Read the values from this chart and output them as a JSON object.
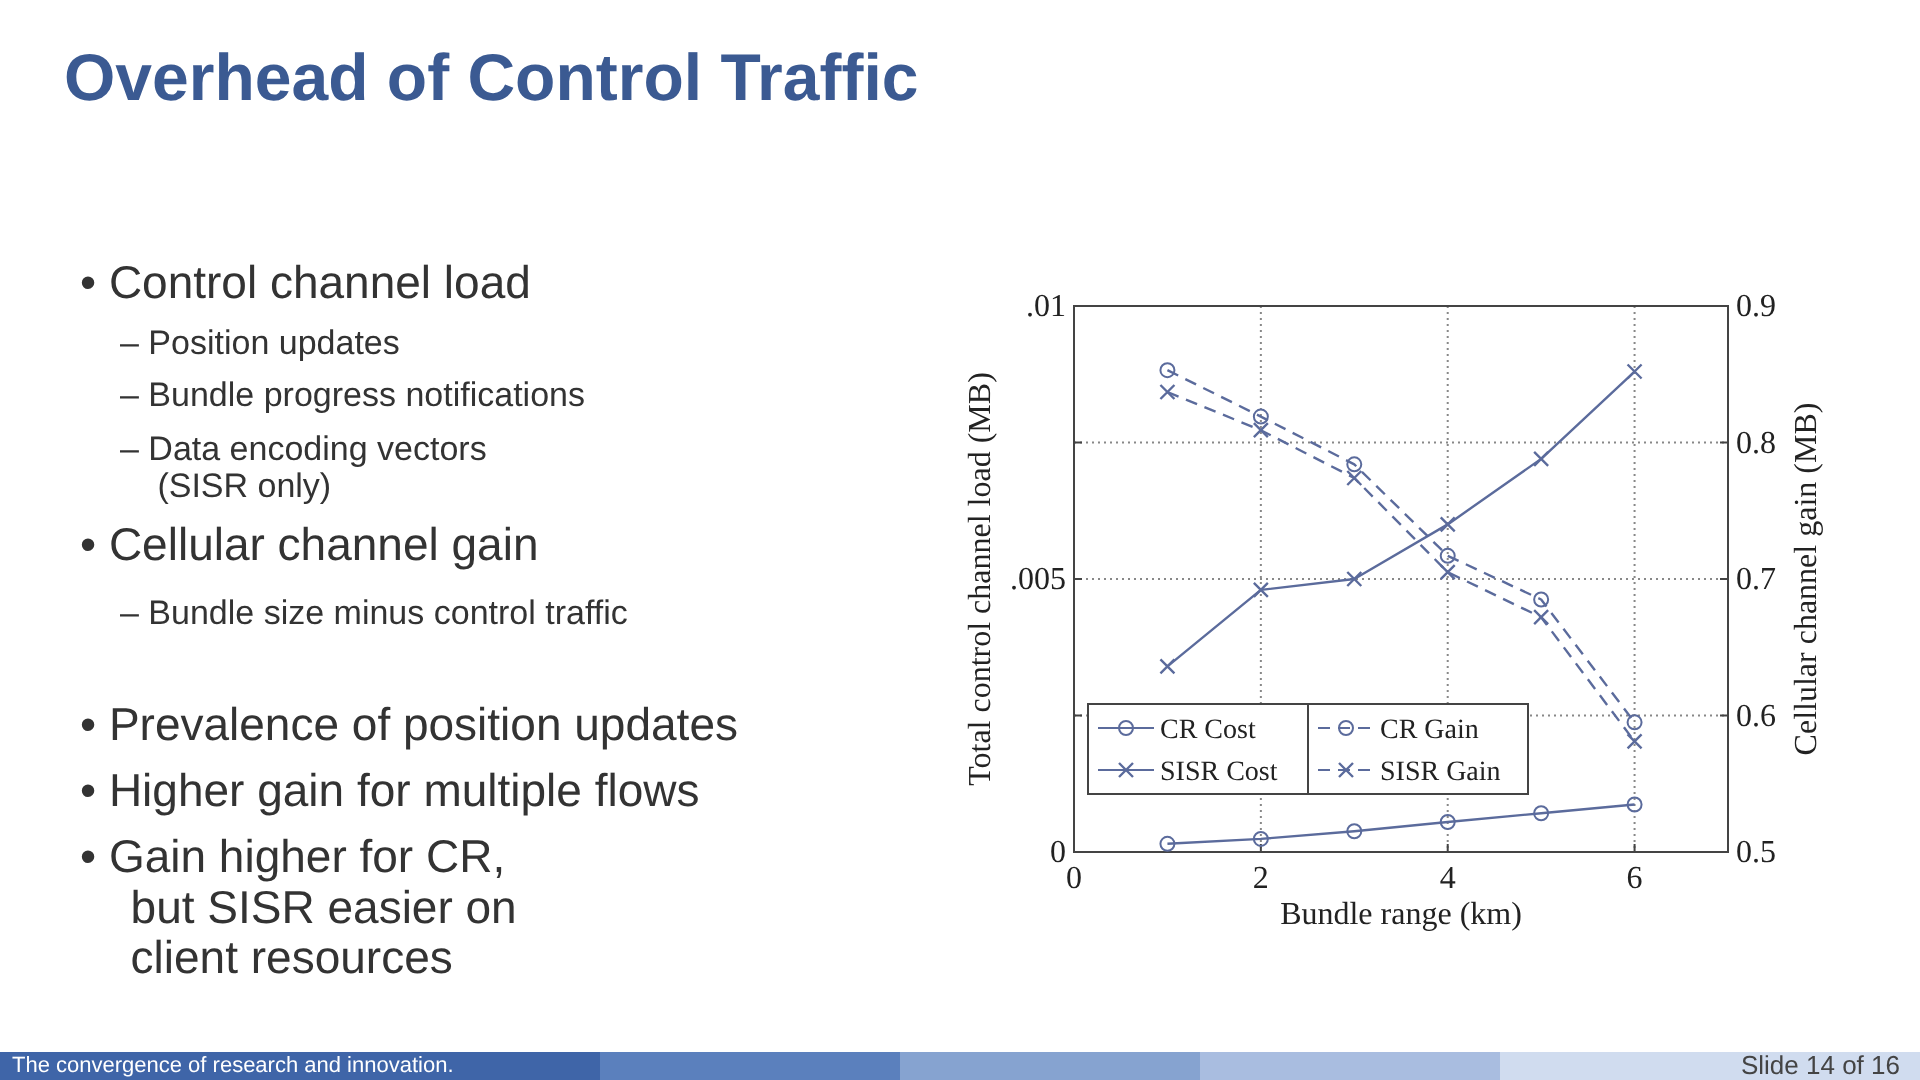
{
  "chart_data": {
    "type": "line",
    "title": "Overhead of Control Traffic",
    "xlabel": "Bundle range (km)",
    "ylabel": "Total control channel load (MB)",
    "y2label": "Cellular channel gain (MB)",
    "x": [
      1,
      2,
      3,
      4,
      5,
      6
    ],
    "xlim": [
      0,
      7
    ],
    "xticks": [
      0,
      2,
      4,
      6
    ],
    "ylim": [
      0,
      0.01
    ],
    "yticks": [
      {
        "value": 0,
        "label": "0"
      },
      {
        "value": 0.0025,
        "label": null
      },
      {
        "value": 0.005,
        "label": ".005"
      },
      {
        "value": 0.0075,
        "label": null
      },
      {
        "value": 0.01,
        "label": ".01"
      }
    ],
    "y2lim": [
      0.5,
      0.9
    ],
    "y2ticks": [
      0.5,
      0.6,
      0.7,
      0.8,
      0.9
    ],
    "grid": true,
    "legend": "bottom left",
    "series": [
      {
        "name": "CR Cost",
        "color": "#5b6b9c",
        "marker": "circle",
        "line_style": "solid",
        "values": [
          0.00015,
          0.00024,
          0.00038,
          0.00055,
          0.00071,
          0.00087
        ]
      },
      {
        "name": "SISR Cost",
        "color": "#5b6b9c",
        "marker": "cross",
        "line_style": "solid",
        "values": [
          0.0034,
          0.0048,
          0.005,
          0.006,
          0.0072,
          0.0088
        ]
      },
      {
        "name": "CR Gain",
        "color": "#5b6b9c",
        "marker": "circle",
        "line_style": "dashed",
        "axis": "y2",
        "values": [
          0.853,
          0.819,
          0.784,
          0.717,
          0.685,
          0.595
        ]
      },
      {
        "name": "SISR Gain",
        "color": "#5b6b9c",
        "marker": "cross",
        "line_style": "dashed",
        "axis": "y2",
        "values": [
          0.837,
          0.809,
          0.774,
          0.705,
          0.672,
          0.581
        ]
      }
    ],
    "annotations": [
      "• Control channel load",
      "– Position updates",
      "– Bundle progress notifications",
      "– Data encoding vectors (SISR only)",
      "• Cellular channel gain",
      "– Bundle size minus control traffic",
      "• Prevalence of position updates",
      "• Higher gain for multiple flows",
      "• Gain higher for CR, but SISR easier on client resources",
      "The convergence of research and innovation.",
      "Slide 14 of 16"
    ]
  }
}
